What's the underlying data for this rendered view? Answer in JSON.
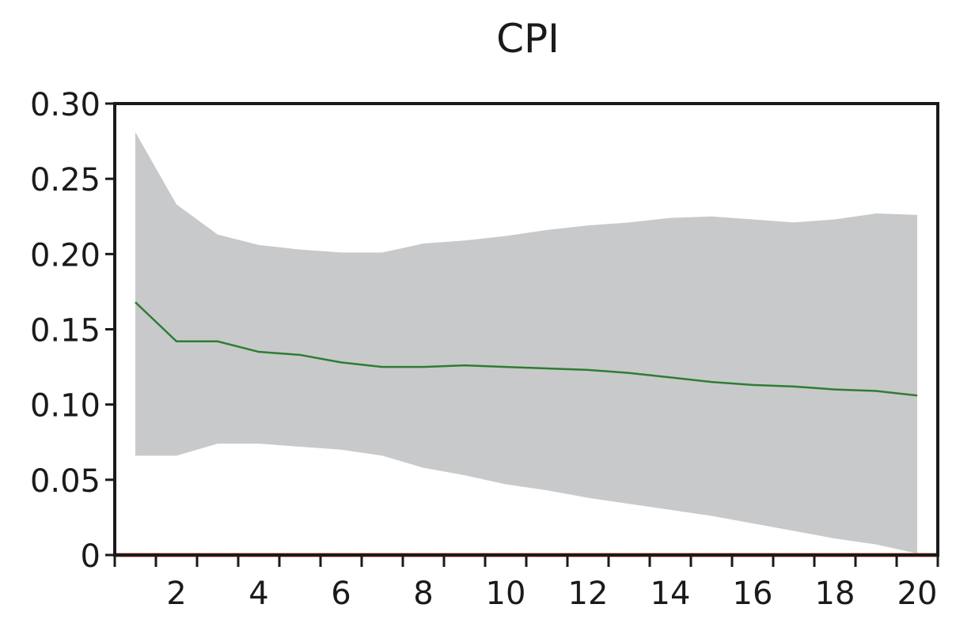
{
  "chart_data": {
    "type": "area",
    "title": "CPI",
    "xlabel": "",
    "ylabel": "",
    "xlim": [
      0.5,
      20.5
    ],
    "ylim": [
      0,
      0.3
    ],
    "x_ticks": [
      2,
      4,
      6,
      8,
      10,
      12,
      14,
      16,
      18,
      20
    ],
    "y_ticks": [
      0,
      0.05,
      0.1,
      0.15,
      0.2,
      0.25,
      0.3
    ],
    "y_tick_labels": [
      "0",
      "0.05",
      "0.10",
      "0.15",
      "0.20",
      "0.25",
      "0.30"
    ],
    "grid": false,
    "legend": "none",
    "x": [
      1,
      2,
      3,
      4,
      5,
      6,
      7,
      8,
      9,
      10,
      11,
      12,
      13,
      14,
      15,
      16,
      17,
      18,
      19,
      20
    ],
    "series": [
      {
        "role": "median",
        "color": "#2e7d32",
        "values": [
          0.168,
          0.142,
          0.142,
          0.135,
          0.133,
          0.128,
          0.125,
          0.125,
          0.126,
          0.125,
          0.124,
          0.123,
          0.121,
          0.118,
          0.115,
          0.113,
          0.112,
          0.11,
          0.109,
          0.106
        ]
      },
      {
        "role": "upper_band",
        "color": "#c8c9cb",
        "values": [
          0.281,
          0.233,
          0.213,
          0.206,
          0.203,
          0.201,
          0.201,
          0.207,
          0.209,
          0.212,
          0.216,
          0.219,
          0.221,
          0.224,
          0.225,
          0.223,
          0.221,
          0.223,
          0.227,
          0.226
        ]
      },
      {
        "role": "lower_band",
        "color": "#c8c9cb",
        "values": [
          0.066,
          0.066,
          0.074,
          0.074,
          0.072,
          0.07,
          0.066,
          0.058,
          0.053,
          0.047,
          0.043,
          0.038,
          0.034,
          0.03,
          0.026,
          0.021,
          0.016,
          0.011,
          0.007,
          0.001
        ]
      }
    ],
    "reference_line": {
      "y": 0,
      "color": "#e8552c"
    }
  }
}
